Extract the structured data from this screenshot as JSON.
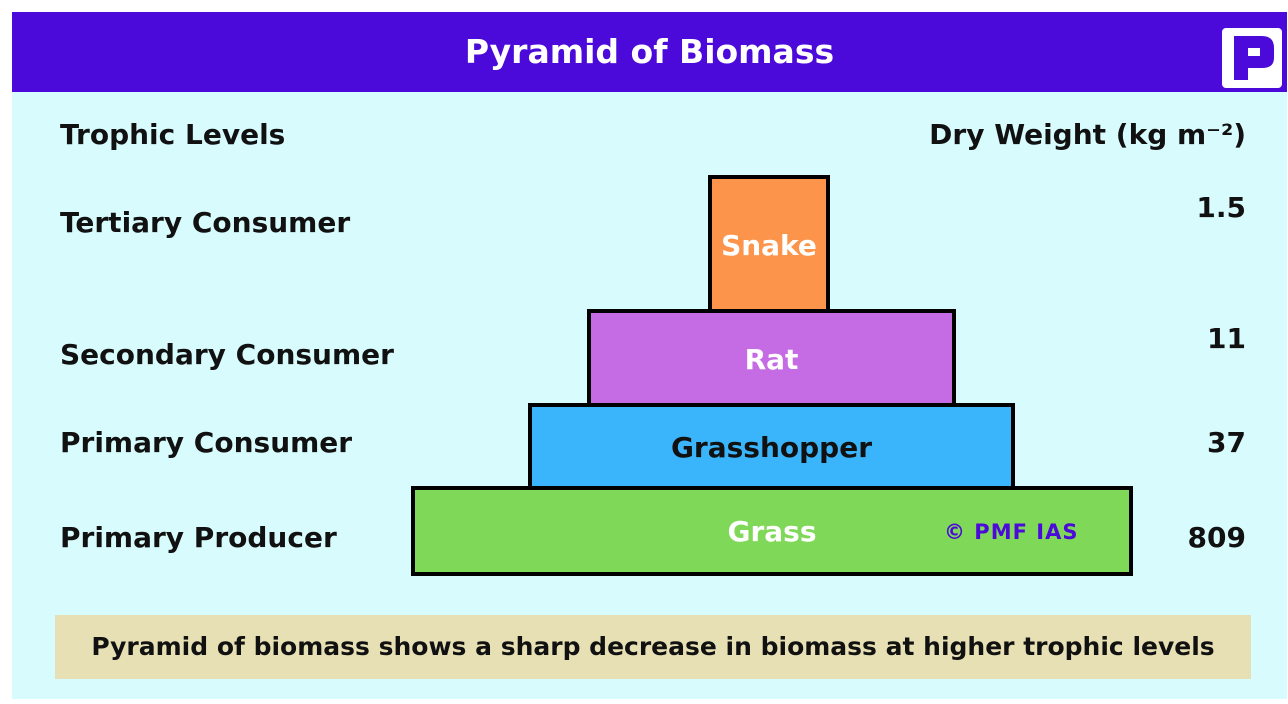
{
  "title": "Pyramid of Biomass",
  "logo_letter": "P",
  "headers": {
    "trophic_levels": "Trophic Levels",
    "dry_weight": "Dry Weight (kg m⁻²)"
  },
  "levels": [
    {
      "name": "Tertiary Consumer",
      "organism": "Snake",
      "dry_weight": "1.5",
      "color": "#FC944C"
    },
    {
      "name": "Secondary Consumer",
      "organism": "Rat",
      "dry_weight": "11",
      "color": "#C56BE3"
    },
    {
      "name": "Primary Consumer",
      "organism": "Grasshopper",
      "dry_weight": "37",
      "color": "#3AB4FA"
    },
    {
      "name": "Primary Producer",
      "organism": "Grass",
      "dry_weight": "809",
      "color": "#80D859"
    }
  ],
  "copyright": "© PMF IAS",
  "footer": "Pyramid of biomass shows a sharp decrease in biomass at higher trophic levels",
  "colors": {
    "banner": "#4B0AD9",
    "panel": "#D8FBFD",
    "footer_bg": "#E7E0B4"
  }
}
